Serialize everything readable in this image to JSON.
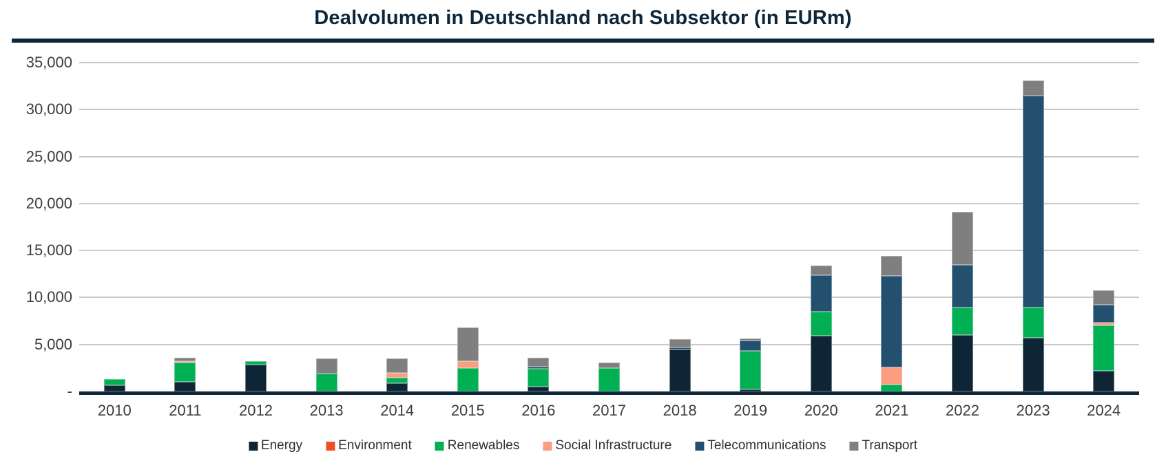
{
  "title": "Dealvolumen in Deutschland nach Subsektor (in EURm)",
  "chart_data": {
    "type": "bar",
    "stacked": true,
    "title": "Dealvolumen in Deutschland nach Subsektor (in EURm)",
    "unit": "EURm",
    "xlabel": "",
    "ylabel": "",
    "ylim": [
      0,
      35000
    ],
    "grid": true,
    "legend_position": "bottom",
    "categories": [
      "2010",
      "2011",
      "2012",
      "2013",
      "2014",
      "2015",
      "2016",
      "2017",
      "2018",
      "2019",
      "2020",
      "2021",
      "2022",
      "2023",
      "2024"
    ],
    "series": [
      {
        "name": "Energy",
        "color": "#0d2535",
        "values": [
          650,
          1050,
          2850,
          0,
          900,
          0,
          550,
          0,
          4500,
          250,
          5900,
          0,
          6000,
          5700,
          2200
        ]
      },
      {
        "name": "Environment",
        "color": "#f04f23",
        "values": [
          0,
          0,
          0,
          0,
          0,
          0,
          0,
          0,
          0,
          0,
          0,
          0,
          0,
          0,
          0
        ]
      },
      {
        "name": "Renewables",
        "color": "#00b052",
        "values": [
          700,
          2000,
          400,
          1900,
          550,
          2500,
          1900,
          2500,
          0,
          4100,
          2600,
          750,
          2900,
          3200,
          4850
        ]
      },
      {
        "name": "Social Infrastructure",
        "color": "#fb9e80",
        "values": [
          0,
          170,
          0,
          0,
          550,
          700,
          0,
          0,
          0,
          0,
          0,
          1850,
          0,
          0,
          300
        ]
      },
      {
        "name": "Telecommunications",
        "color": "#24506f",
        "values": [
          0,
          0,
          0,
          0,
          0,
          0,
          200,
          0,
          200,
          1100,
          3850,
          9700,
          4600,
          22600,
          1850
        ]
      },
      {
        "name": "Transport",
        "color": "#7f7f7f",
        "values": [
          0,
          380,
          0,
          1600,
          1500,
          3600,
          950,
          600,
          900,
          200,
          1050,
          2100,
          5600,
          1600,
          1600
        ]
      }
    ],
    "totals": [
      1350,
      3600,
      3250,
      3500,
      3500,
      6800,
      3600,
      3100,
      5700,
      5650,
      13400,
      14400,
      19100,
      33100,
      10800
    ],
    "yticks": [
      {
        "value": 35000,
        "label": "35,000"
      },
      {
        "value": 30000,
        "label": "30,000"
      },
      {
        "value": 25000,
        "label": "25,000"
      },
      {
        "value": 20000,
        "label": "20,000"
      },
      {
        "value": 15000,
        "label": "15,000"
      },
      {
        "value": 10000,
        "label": "10,000"
      },
      {
        "value": 5000,
        "label": "5,000"
      },
      {
        "value": 0,
        "label": "-"
      }
    ]
  },
  "style_colors": {
    "title_and_axis": "#0e2639",
    "gridline": "#c9c9c9",
    "tick_text": "#3d3d3d",
    "legend_text": "#2f2f2f"
  }
}
